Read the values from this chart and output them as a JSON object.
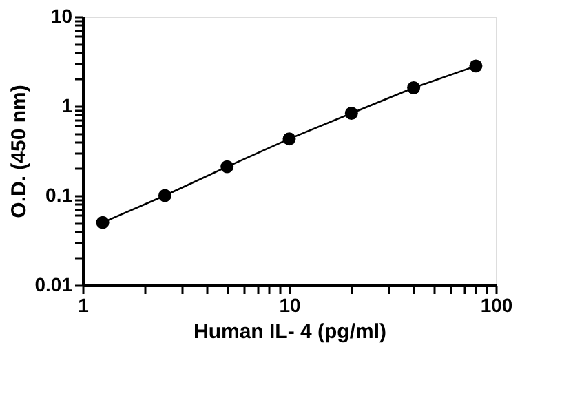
{
  "chart_data": {
    "type": "line",
    "xlabel": "Human IL- 4 (pg/ml)",
    "ylabel": "O.D. (450 nm)",
    "log": "xy",
    "marker": "circle",
    "line_style": "solid",
    "grid": false,
    "x": [
      1.25,
      2.5,
      5,
      10,
      20,
      40,
      80
    ],
    "series": [
      {
        "color": "#000000",
        "values": [
          0.05,
          0.1,
          0.21,
          0.43,
          0.83,
          1.6,
          2.8
        ]
      }
    ],
    "xlim": [
      1,
      100
    ],
    "xticks": [
      1,
      {
        "value": 2,
        "label": null
      },
      {
        "value": 3,
        "label": null
      },
      {
        "value": 4,
        "label": null
      },
      {
        "value": 5,
        "label": null
      },
      {
        "value": 6,
        "label": null
      },
      {
        "value": 7,
        "label": null
      },
      {
        "value": 8,
        "label": null
      },
      {
        "value": 9,
        "label": null
      },
      10,
      {
        "value": 20,
        "label": null
      },
      {
        "value": 30,
        "label": null
      },
      {
        "value": 40,
        "label": null
      },
      {
        "value": 50,
        "label": null
      },
      {
        "value": 60,
        "label": null
      },
      {
        "value": 70,
        "label": null
      },
      {
        "value": 80,
        "label": null
      },
      {
        "value": 90,
        "label": null
      },
      100
    ],
    "ylim": [
      0.01,
      10
    ],
    "yticks": [
      0.01,
      {
        "value": 0.02,
        "label": null
      },
      {
        "value": 0.03,
        "label": null
      },
      {
        "value": 0.04,
        "label": null
      },
      {
        "value": 0.05,
        "label": null
      },
      {
        "value": 0.06,
        "label": null
      },
      {
        "value": 0.07,
        "label": null
      },
      {
        "value": 0.08,
        "label": null
      },
      {
        "value": 0.09,
        "label": null
      },
      0.1,
      {
        "value": 0.2,
        "label": null
      },
      {
        "value": 0.3,
        "label": null
      },
      {
        "value": 0.4,
        "label": null
      },
      {
        "value": 0.5,
        "label": null
      },
      {
        "value": 0.6,
        "label": null
      },
      {
        "value": 0.7,
        "label": null
      },
      {
        "value": 0.8,
        "label": null
      },
      {
        "value": 0.9,
        "label": null
      },
      1,
      {
        "value": 2,
        "label": null
      },
      {
        "value": 3,
        "label": null
      },
      {
        "value": 4,
        "label": null
      },
      {
        "value": 5,
        "label": null
      },
      {
        "value": 6,
        "label": null
      },
      {
        "value": 7,
        "label": null
      },
      {
        "value": 8,
        "label": null
      },
      {
        "value": 9,
        "label": null
      },
      10
    ]
  }
}
